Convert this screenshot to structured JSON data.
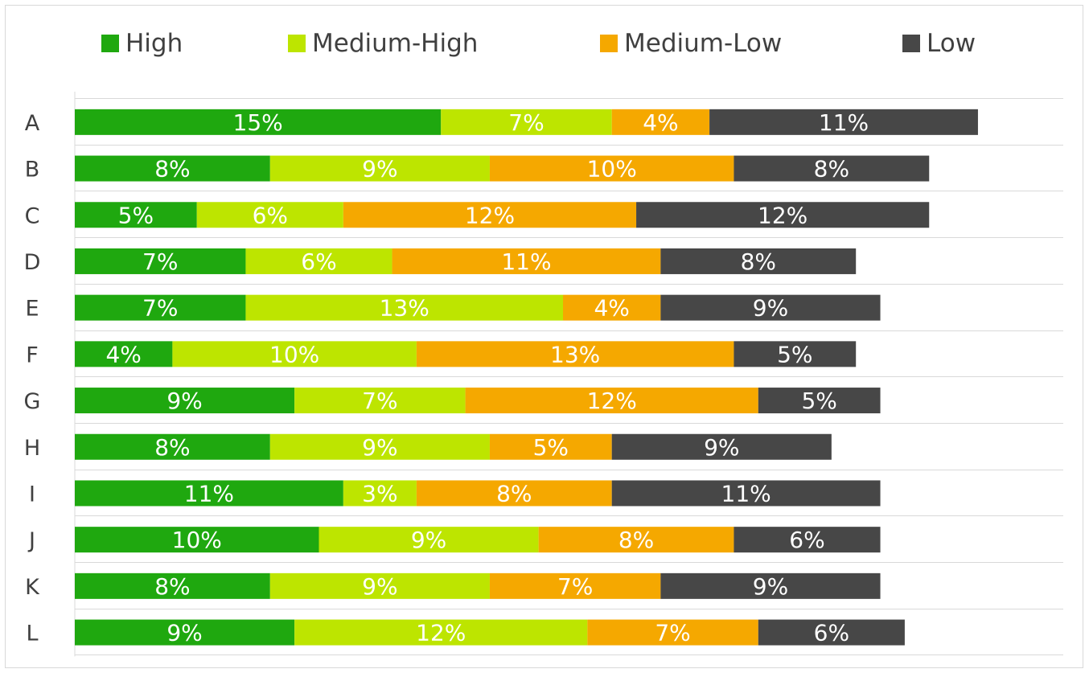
{
  "chart_data": {
    "type": "bar",
    "orientation": "horizontal",
    "stacked": true,
    "categories": [
      "A",
      "B",
      "C",
      "D",
      "E",
      "F",
      "G",
      "H",
      "I",
      "J",
      "K",
      "L"
    ],
    "series": [
      {
        "name": "High",
        "color": "#1fa80f",
        "values": [
          15,
          8,
          5,
          7,
          7,
          4,
          9,
          8,
          11,
          10,
          8,
          9
        ]
      },
      {
        "name": "Medium-High",
        "color": "#bde500",
        "values": [
          7,
          9,
          6,
          6,
          13,
          10,
          7,
          9,
          3,
          9,
          9,
          12
        ]
      },
      {
        "name": "Medium-Low",
        "color": "#f5a800",
        "values": [
          4,
          10,
          12,
          11,
          4,
          13,
          12,
          5,
          8,
          8,
          7,
          7
        ]
      },
      {
        "name": "Low",
        "color": "#474747",
        "values": [
          11,
          8,
          12,
          8,
          9,
          5,
          5,
          9,
          11,
          6,
          9,
          6
        ]
      }
    ],
    "value_suffix": "%",
    "legend_position": "top",
    "grid": true,
    "title": "",
    "xlabel": "",
    "ylabel": ""
  }
}
